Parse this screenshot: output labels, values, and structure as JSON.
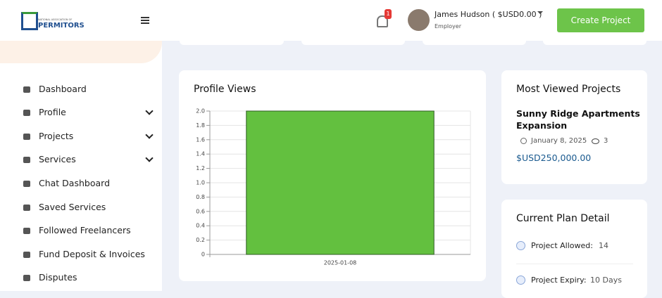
{
  "header": {
    "logo_small": "NATIONAL ASSOCIATION OF",
    "logo": "PERMITORS",
    "notification_count": "1",
    "user_name": "James Hudson ( $USD0.00 )",
    "user_role": "Employer",
    "button": "Create Project"
  },
  "sidebar": {
    "items": [
      "Dashboard",
      "Profile",
      "Projects",
      "Services",
      "Chat Dashboard",
      "Saved Services",
      "Followed Freelancers",
      "Fund Deposit & Invoices",
      "Disputes"
    ]
  },
  "chart_data": {
    "type": "bar",
    "title": "Profile Views",
    "categories": [
      "2025-01-08"
    ],
    "values": [
      2
    ],
    "color": "#63c03f",
    "ylim": [
      0,
      2
    ],
    "yticks": [
      0,
      0.2,
      0.4,
      0.6,
      0.8,
      {
        "value": 1,
        "label": "1.0"
      },
      1.2,
      1.4,
      1.6,
      1.8,
      {
        "value": 2,
        "label": "2.0"
      }
    ],
    "grid": true
  },
  "most_viewed": {
    "title": "Most Viewed Projects",
    "project": "Sunny Ridge Apartments Expansion",
    "date": "January 8, 2025",
    "views": "3",
    "price": "$USD250,000.00"
  },
  "plan": {
    "title": "Current Plan Detail",
    "rows": [
      [
        "Project Allowed:",
        "14"
      ],
      [
        "Project Expiry:",
        "10 Days"
      ]
    ]
  }
}
